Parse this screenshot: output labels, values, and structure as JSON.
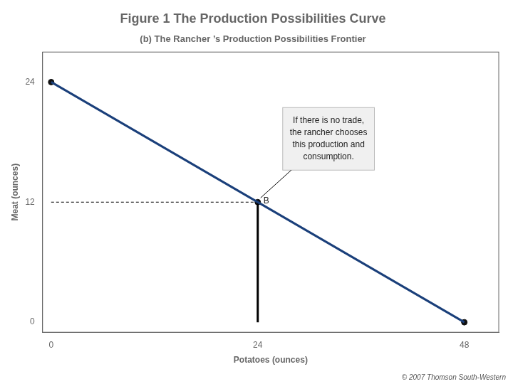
{
  "chart_data": {
    "type": "line",
    "title": "Figure 1 The Production Possibilities Curve",
    "subtitle": "(b) The Rancher ’s Production Possibilities Frontier",
    "xlabel": "Potatoes (ounces)",
    "ylabel": "Meat (ounces)",
    "xlim": [
      -1,
      52
    ],
    "ylim": [
      -1,
      27
    ],
    "xticks": [
      0,
      24,
      48
    ],
    "yticks": [
      0,
      12,
      24
    ],
    "grid": false,
    "series": [
      {
        "color": "#1a3f7a",
        "line_style": "solid",
        "x": [
          0,
          48
        ],
        "values": [
          24,
          0
        ]
      },
      {
        "color": "#000000",
        "line_style": "dashed",
        "x": [
          0,
          24
        ],
        "values": [
          12,
          12
        ]
      },
      {
        "color": "#000000",
        "line_style": "solid",
        "x": [
          24,
          24
        ],
        "values": [
          0,
          12
        ]
      },
      {
        "type": "scatter",
        "color": "#111111",
        "marker": "circle",
        "x": [
          0,
          48,
          24
        ],
        "values": [
          24,
          0,
          12
        ]
      }
    ],
    "annotations": [
      {
        "text": "B",
        "point": [
          24,
          12
        ]
      },
      {
        "text": "If there is no trade,\nthe rancher chooses\nthis production and\nconsumption.",
        "point": [
          24,
          12
        ]
      }
    ],
    "caption": "© 2007 Thomson South-Western"
  }
}
